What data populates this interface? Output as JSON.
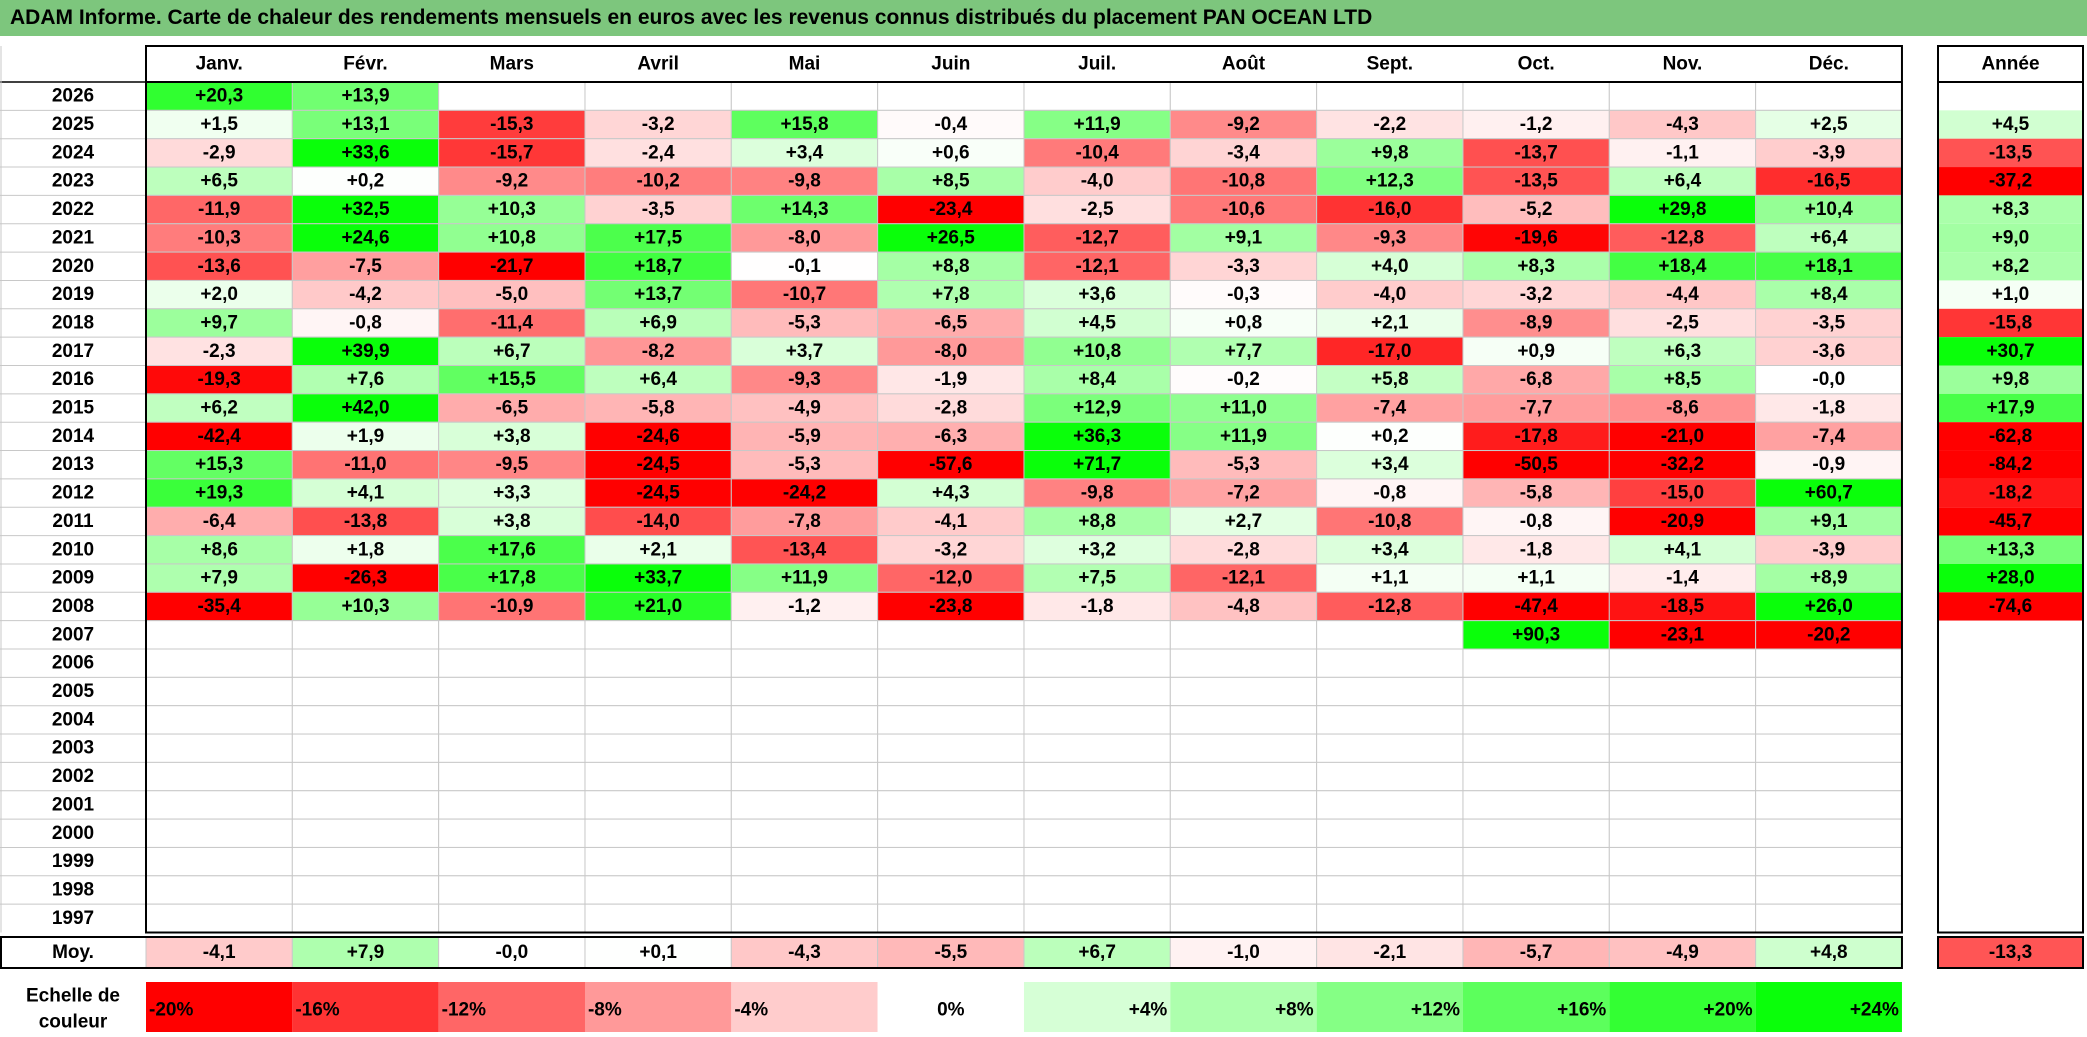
{
  "title": "ADAM Informe. Carte de chaleur des rendements mensuels en euros avec les revenus connus distribués du placement PAN OCEAN LTD",
  "chart_data": {
    "type": "heatmap",
    "title": "ADAM Informe. Carte de chaleur des rendements mensuels en euros avec les revenus connus distribués du placement PAN OCEAN LTD",
    "columns": [
      "Janv.",
      "Févr.",
      "Mars",
      "Avril",
      "Mai",
      "Juin",
      "Juil.",
      "Août",
      "Sept.",
      "Oct.",
      "Nov.",
      "Déc."
    ],
    "year_header": "Année",
    "rows": [
      {
        "year": "2026",
        "months": [
          "+20,3",
          "+13,9",
          "",
          "",
          "",
          "",
          "",
          "",
          "",
          "",
          "",
          ""
        ],
        "annual": ""
      },
      {
        "year": "2025",
        "months": [
          "+1,5",
          "+13,1",
          "-15,3",
          "-3,2",
          "+15,8",
          "-0,4",
          "+11,9",
          "-9,2",
          "-2,2",
          "-1,2",
          "-4,3",
          "+2,5"
        ],
        "annual": "+4,5"
      },
      {
        "year": "2024",
        "months": [
          "-2,9",
          "+33,6",
          "-15,7",
          "-2,4",
          "+3,4",
          "+0,6",
          "-10,4",
          "-3,4",
          "+9,8",
          "-13,7",
          "-1,1",
          "-3,9"
        ],
        "annual": "-13,5"
      },
      {
        "year": "2023",
        "months": [
          "+6,5",
          "+0,2",
          "-9,2",
          "-10,2",
          "-9,8",
          "+8,5",
          "-4,0",
          "-10,8",
          "+12,3",
          "-13,5",
          "+6,4",
          "-16,5"
        ],
        "annual": "-37,2"
      },
      {
        "year": "2022",
        "months": [
          "-11,9",
          "+32,5",
          "+10,3",
          "-3,5",
          "+14,3",
          "-23,4",
          "-2,5",
          "-10,6",
          "-16,0",
          "-5,2",
          "+29,8",
          "+10,4"
        ],
        "annual": "+8,3"
      },
      {
        "year": "2021",
        "months": [
          "-10,3",
          "+24,6",
          "+10,8",
          "+17,5",
          "-8,0",
          "+26,5",
          "-12,7",
          "+9,1",
          "-9,3",
          "-19,6",
          "-12,8",
          "+6,4"
        ],
        "annual": "+9,0"
      },
      {
        "year": "2020",
        "months": [
          "-13,6",
          "-7,5",
          "-21,7",
          "+18,7",
          "-0,1",
          "+8,8",
          "-12,1",
          "-3,3",
          "+4,0",
          "+8,3",
          "+18,4",
          "+18,1"
        ],
        "annual": "+8,2"
      },
      {
        "year": "2019",
        "months": [
          "+2,0",
          "-4,2",
          "-5,0",
          "+13,7",
          "-10,7",
          "+7,8",
          "+3,6",
          "-0,3",
          "-4,0",
          "-3,2",
          "-4,4",
          "+8,4"
        ],
        "annual": "+1,0"
      },
      {
        "year": "2018",
        "months": [
          "+9,7",
          "-0,8",
          "-11,4",
          "+6,9",
          "-5,3",
          "-6,5",
          "+4,5",
          "+0,8",
          "+2,1",
          "-8,9",
          "-2,5",
          "-3,5"
        ],
        "annual": "-15,8"
      },
      {
        "year": "2017",
        "months": [
          "-2,3",
          "+39,9",
          "+6,7",
          "-8,2",
          "+3,7",
          "-8,0",
          "+10,8",
          "+7,7",
          "-17,0",
          "+0,9",
          "+6,3",
          "-3,6"
        ],
        "annual": "+30,7"
      },
      {
        "year": "2016",
        "months": [
          "-19,3",
          "+7,6",
          "+15,5",
          "+6,4",
          "-9,3",
          "-1,9",
          "+8,4",
          "-0,2",
          "+5,8",
          "-6,8",
          "+8,5",
          "-0,0"
        ],
        "annual": "+9,8"
      },
      {
        "year": "2015",
        "months": [
          "+6,2",
          "+42,0",
          "-6,5",
          "-5,8",
          "-4,9",
          "-2,8",
          "+12,9",
          "+11,0",
          "-7,4",
          "-7,7",
          "-8,6",
          "-1,8"
        ],
        "annual": "+17,9"
      },
      {
        "year": "2014",
        "months": [
          "-42,4",
          "+1,9",
          "+3,8",
          "-24,6",
          "-5,9",
          "-6,3",
          "+36,3",
          "+11,9",
          "+0,2",
          "-17,8",
          "-21,0",
          "-7,4"
        ],
        "annual": "-62,8"
      },
      {
        "year": "2013",
        "months": [
          "+15,3",
          "-11,0",
          "-9,5",
          "-24,5",
          "-5,3",
          "-57,6",
          "+71,7",
          "-5,3",
          "+3,4",
          "-50,5",
          "-32,2",
          "-0,9"
        ],
        "annual": "-84,2"
      },
      {
        "year": "2012",
        "months": [
          "+19,3",
          "+4,1",
          "+3,3",
          "-24,5",
          "-24,2",
          "+4,3",
          "-9,8",
          "-7,2",
          "-0,8",
          "-5,8",
          "-15,0",
          "+60,7"
        ],
        "annual": "-18,2"
      },
      {
        "year": "2011",
        "months": [
          "-6,4",
          "-13,8",
          "+3,8",
          "-14,0",
          "-7,8",
          "-4,1",
          "+8,8",
          "+2,7",
          "-10,8",
          "-0,8",
          "-20,9",
          "+9,1"
        ],
        "annual": "-45,7"
      },
      {
        "year": "2010",
        "months": [
          "+8,6",
          "+1,8",
          "+17,6",
          "+2,1",
          "-13,4",
          "-3,2",
          "+3,2",
          "-2,8",
          "+3,4",
          "-1,8",
          "+4,1",
          "-3,9"
        ],
        "annual": "+13,3"
      },
      {
        "year": "2009",
        "months": [
          "+7,9",
          "-26,3",
          "+17,8",
          "+33,7",
          "+11,9",
          "-12,0",
          "+7,5",
          "-12,1",
          "+1,1",
          "+1,1",
          "-1,4",
          "+8,9"
        ],
        "annual": "+28,0"
      },
      {
        "year": "2008",
        "months": [
          "-35,4",
          "+10,3",
          "-10,9",
          "+21,0",
          "-1,2",
          "-23,8",
          "-1,8",
          "-4,8",
          "-12,8",
          "-47,4",
          "-18,5",
          "+26,0"
        ],
        "annual": "-74,6"
      },
      {
        "year": "2007",
        "months": [
          "",
          "",
          "",
          "",
          "",
          "",
          "",
          "",
          "",
          "+90,3",
          "-23,1",
          "-20,2"
        ],
        "annual": ""
      },
      {
        "year": "2006",
        "months": [
          "",
          "",
          "",
          "",
          "",
          "",
          "",
          "",
          "",
          "",
          "",
          ""
        ],
        "annual": ""
      },
      {
        "year": "2005",
        "months": [
          "",
          "",
          "",
          "",
          "",
          "",
          "",
          "",
          "",
          "",
          "",
          ""
        ],
        "annual": ""
      },
      {
        "year": "2004",
        "months": [
          "",
          "",
          "",
          "",
          "",
          "",
          "",
          "",
          "",
          "",
          "",
          ""
        ],
        "annual": ""
      },
      {
        "year": "2003",
        "months": [
          "",
          "",
          "",
          "",
          "",
          "",
          "",
          "",
          "",
          "",
          "",
          ""
        ],
        "annual": ""
      },
      {
        "year": "2002",
        "months": [
          "",
          "",
          "",
          "",
          "",
          "",
          "",
          "",
          "",
          "",
          "",
          ""
        ],
        "annual": ""
      },
      {
        "year": "2001",
        "months": [
          "",
          "",
          "",
          "",
          "",
          "",
          "",
          "",
          "",
          "",
          "",
          ""
        ],
        "annual": ""
      },
      {
        "year": "2000",
        "months": [
          "",
          "",
          "",
          "",
          "",
          "",
          "",
          "",
          "",
          "",
          "",
          ""
        ],
        "annual": ""
      },
      {
        "year": "1999",
        "months": [
          "",
          "",
          "",
          "",
          "",
          "",
          "",
          "",
          "",
          "",
          "",
          ""
        ],
        "annual": ""
      },
      {
        "year": "1998",
        "months": [
          "",
          "",
          "",
          "",
          "",
          "",
          "",
          "",
          "",
          "",
          "",
          ""
        ],
        "annual": ""
      },
      {
        "year": "1997",
        "months": [
          "",
          "",
          "",
          "",
          "",
          "",
          "",
          "",
          "",
          "",
          "",
          ""
        ],
        "annual": ""
      }
    ],
    "average": {
      "label": "Moy.",
      "months": [
        "-4,1",
        "+7,9",
        "-0,0",
        "+0,1",
        "-4,3",
        "-5,5",
        "+6,7",
        "-1,0",
        "-2,1",
        "-5,7",
        "-4,9",
        "+4,8"
      ],
      "annual": "-13,3"
    },
    "color_scale": {
      "label_line1": "Echelle de",
      "label_line2": "couleur",
      "steps": [
        {
          "label": "-20%",
          "value": -20,
          "color": "#ff0000"
        },
        {
          "label": "-16%",
          "value": -16,
          "color": "#ff3333"
        },
        {
          "label": "-12%",
          "value": -12,
          "color": "#ff6666"
        },
        {
          "label": "-8%",
          "value": -8,
          "color": "#ff9999"
        },
        {
          "label": "-4%",
          "value": -4,
          "color": "#ffcccc"
        },
        {
          "label": "0%",
          "value": 0,
          "color": "#ffffff"
        },
        {
          "label": "+4%",
          "value": 4,
          "color": "#d6ffd6"
        },
        {
          "label": "+8%",
          "value": 8,
          "color": "#adffad"
        },
        {
          "label": "+12%",
          "value": 12,
          "color": "#85ff85"
        },
        {
          "label": "+16%",
          "value": 16,
          "color": "#5cff5c"
        },
        {
          "label": "+20%",
          "value": 20,
          "color": "#33ff33"
        },
        {
          "label": "+24%",
          "value": 24,
          "color": "#0aff0a"
        }
      ]
    },
    "colors": {
      "title_bar": "#7dc67d",
      "grid_line": "#c8c8c8",
      "border": "#000000"
    }
  }
}
